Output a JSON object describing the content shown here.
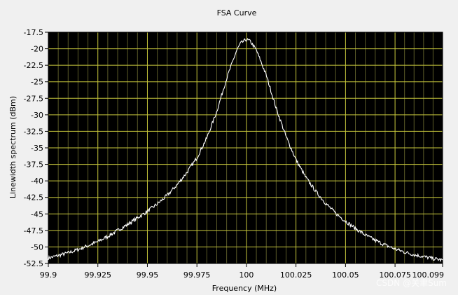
{
  "chart_data": {
    "type": "line",
    "title": "FSA Curve",
    "xlabel": "Frequency (MHz)",
    "ylabel": "Linewidth spectrum (dBm)",
    "xlim": [
      99.9,
      100.099
    ],
    "ylim": [
      -52.5,
      -17.5
    ],
    "x_ticks": [
      99.9,
      99.925,
      99.95,
      99.975,
      100,
      100.025,
      100.05,
      100.075,
      100.099
    ],
    "x_tick_labels": [
      "99.9",
      "99.925",
      "99.95",
      "99.975",
      "100",
      "100.025",
      "100.05",
      "100.075",
      "100.099"
    ],
    "y_ticks": [
      -17.5,
      -20,
      -22.5,
      -25,
      -27.5,
      -30,
      -32.5,
      -35,
      -37.5,
      -40,
      -42.5,
      -45,
      -47.5,
      -50,
      -52.5
    ],
    "y_tick_labels": [
      "-17.5",
      "-20",
      "-22.5",
      "-25",
      "-27.5",
      "-30",
      "-32.5",
      "-35",
      "-37.5",
      "-40",
      "-42.5",
      "-45",
      "-47.5",
      "-50",
      "-52.5"
    ],
    "grid": true,
    "legend": "none",
    "colors": {
      "plot_background": "#000000",
      "grid_major": "#c8c83c",
      "grid_minor": "#5a5a28",
      "line": "#ffffff",
      "panel_background": "#f0f0f0"
    },
    "series": [
      {
        "x": [
          99.9,
          99.905,
          99.91,
          99.915,
          99.92,
          99.925,
          99.93,
          99.935,
          99.94,
          99.945,
          99.95,
          99.955,
          99.96,
          99.965,
          99.97,
          99.975,
          99.98,
          99.985,
          99.99,
          99.995,
          99.997,
          100,
          100.002,
          100.005,
          100.01,
          100.015,
          100.02,
          100.025,
          100.03,
          100.035,
          100.04,
          100.045,
          100.05,
          100.055,
          100.06,
          100.065,
          100.07,
          100.075,
          100.08,
          100.085,
          100.09,
          100.095,
          100.099
        ],
        "y": [
          -51.7,
          -51.3,
          -50.9,
          -50.4,
          -49.8,
          -49.2,
          -48.4,
          -47.5,
          -46.6,
          -45.6,
          -44.6,
          -43.5,
          -42.2,
          -40.6,
          -38.7,
          -36.5,
          -33.5,
          -29.5,
          -24.5,
          -20.3,
          -19.2,
          -18.6,
          -18.9,
          -20.2,
          -24.0,
          -29.0,
          -33.3,
          -36.8,
          -39.5,
          -41.6,
          -43.4,
          -44.9,
          -46.1,
          -47.2,
          -48.2,
          -49.0,
          -49.7,
          -50.3,
          -50.8,
          -51.2,
          -51.5,
          -51.8,
          -52.0
        ]
      }
    ]
  },
  "watermark": "CSDN @关聿Sum"
}
